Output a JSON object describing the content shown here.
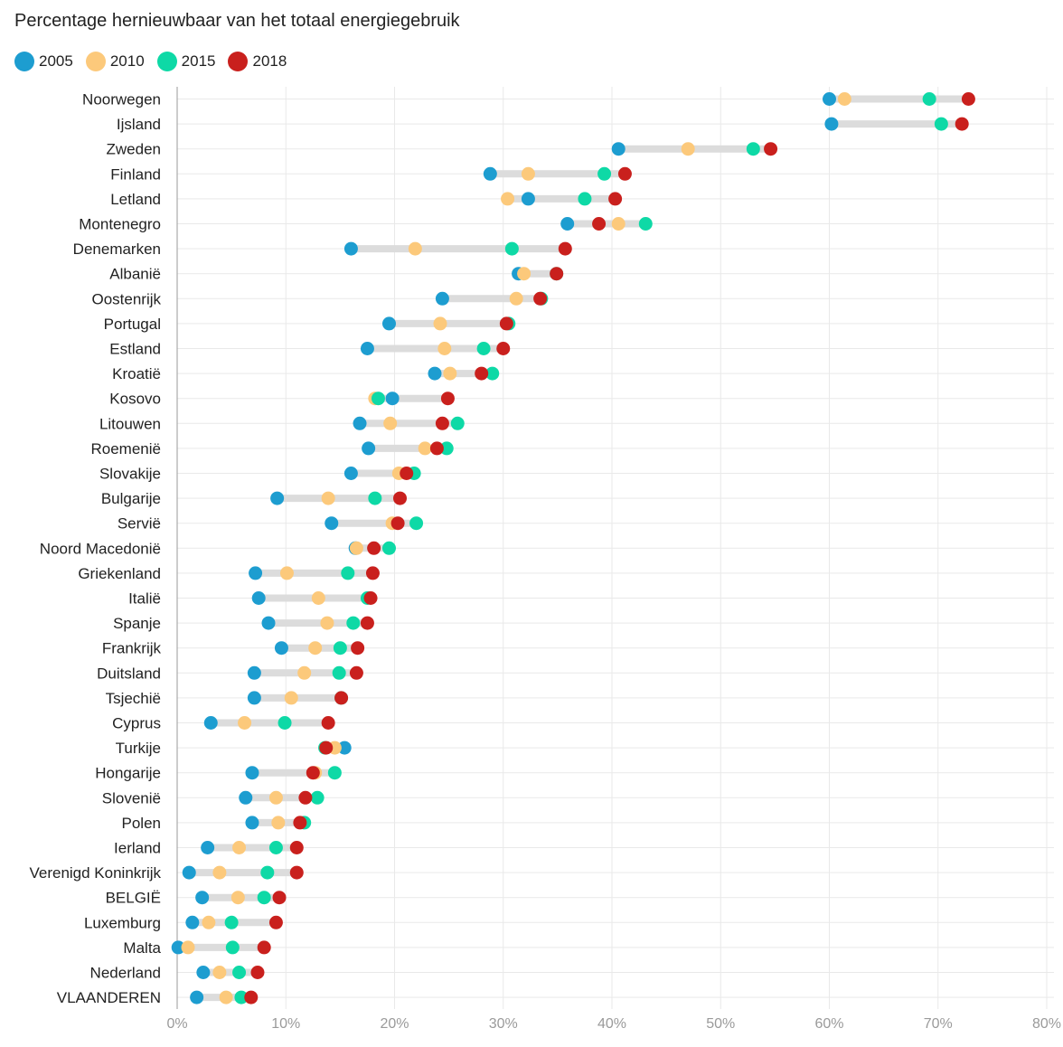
{
  "chart_data": {
    "type": "dot",
    "title": "Percentage hernieuwbaar van het totaal energiegebruik",
    "xlim": [
      0,
      80
    ],
    "xticks": [
      0,
      10,
      20,
      30,
      40,
      50,
      60,
      70,
      80
    ],
    "xtick_labels": [
      "0%",
      "10%",
      "20%",
      "30%",
      "40%",
      "50%",
      "60%",
      "70%",
      "80%"
    ],
    "grid": true,
    "legend_position": "top-left",
    "series": [
      {
        "name": "2005",
        "color": "#1d9dd0"
      },
      {
        "name": "2010",
        "color": "#fcc97b"
      },
      {
        "name": "2015",
        "color": "#0ed9a6"
      },
      {
        "name": "2018",
        "color": "#c9201d"
      }
    ],
    "categories": [
      "Noorwegen",
      "Ijsland",
      "Zweden",
      "Finland",
      "Letland",
      "Montenegro",
      "Denemarken",
      "Albanië",
      "Oostenrijk",
      "Portugal",
      "Estland",
      "Kroatië",
      "Kosovo",
      "Litouwen",
      "Roemenië",
      "Slovakije",
      "Bulgarije",
      "Servië",
      "Noord Macedonië",
      "Griekenland",
      "Italië",
      "Spanje",
      "Frankrijk",
      "Duitsland",
      "Tsjechië",
      "Cyprus",
      "Turkije",
      "Hongarije",
      "Slovenië",
      "Polen",
      "Ierland",
      "Verenigd Koninkrijk",
      "BELGIË",
      "Luxemburg",
      "Malta",
      "Nederland",
      "VLAANDEREN"
    ],
    "values": [
      [
        60.0,
        61.4,
        69.2,
        72.8
      ],
      [
        60.2,
        null,
        70.3,
        72.2
      ],
      [
        40.6,
        47.0,
        53.0,
        54.6
      ],
      [
        28.8,
        32.3,
        39.3,
        41.2
      ],
      [
        32.3,
        30.4,
        37.5,
        40.3
      ],
      [
        35.9,
        40.6,
        43.1,
        38.8
      ],
      [
        16.0,
        21.9,
        30.8,
        35.7
      ],
      [
        31.4,
        31.9,
        34.9,
        34.9
      ],
      [
        24.4,
        31.2,
        33.5,
        33.4
      ],
      [
        19.5,
        24.2,
        30.5,
        30.3
      ],
      [
        17.5,
        24.6,
        28.2,
        30.0
      ],
      [
        23.7,
        25.1,
        29.0,
        28.0
      ],
      [
        19.8,
        18.2,
        18.5,
        24.9
      ],
      [
        16.8,
        19.6,
        25.8,
        24.4
      ],
      [
        17.6,
        22.8,
        24.8,
        23.9
      ],
      [
        16.0,
        20.4,
        21.8,
        21.1
      ],
      [
        9.2,
        13.9,
        18.2,
        20.5
      ],
      [
        14.2,
        19.8,
        22.0,
        20.3
      ],
      [
        16.4,
        16.5,
        19.5,
        18.1
      ],
      [
        7.2,
        10.1,
        15.7,
        18.0
      ],
      [
        7.5,
        13.0,
        17.5,
        17.8
      ],
      [
        8.4,
        13.8,
        16.2,
        17.5
      ],
      [
        9.6,
        12.7,
        15.0,
        16.6
      ],
      [
        7.1,
        11.7,
        14.9,
        16.5
      ],
      [
        7.1,
        10.5,
        15.1,
        15.1
      ],
      [
        3.1,
        6.2,
        9.9,
        13.9
      ],
      [
        15.4,
        14.5,
        13.6,
        13.7
      ],
      [
        6.9,
        12.7,
        14.5,
        12.5
      ],
      [
        6.3,
        9.1,
        12.9,
        11.8
      ],
      [
        6.9,
        9.3,
        11.7,
        11.3
      ],
      [
        2.8,
        5.7,
        9.1,
        11.0
      ],
      [
        1.1,
        3.9,
        8.3,
        11.0
      ],
      [
        2.3,
        5.6,
        8.0,
        9.4
      ],
      [
        1.4,
        2.9,
        5.0,
        9.1
      ],
      [
        0.1,
        1.0,
        5.1,
        8.0
      ],
      [
        2.4,
        3.9,
        5.7,
        7.4
      ],
      [
        1.8,
        4.5,
        5.9,
        6.8
      ]
    ]
  }
}
